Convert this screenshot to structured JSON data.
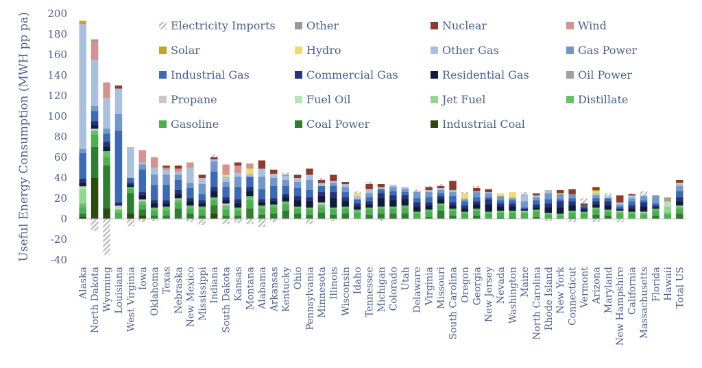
{
  "chart_data": {
    "type": "bar",
    "stacked": true,
    "ylabel": "Useful Energy Consumption (MWH pp pa)",
    "ylim": [
      -40,
      200
    ],
    "yticks": [
      -40,
      -20,
      0,
      20,
      40,
      60,
      80,
      100,
      120,
      140,
      160,
      180,
      200
    ],
    "grid": false,
    "legend_position": "top-right",
    "categories": [
      "Alaska",
      "North Dakota",
      "Wyoming",
      "Louisiana",
      "West Virginia",
      "Iowa",
      "Oklahoma",
      "Texas",
      "Nebraska",
      "New Mexico",
      "Mississippi",
      "Indiana",
      "South Dakota",
      "Kansas",
      "Montana",
      "Alabama",
      "Arkansas",
      "Kentucky",
      "Ohio",
      "Pennsylvania",
      "Minnesota",
      "Illinois",
      "Wisconsin",
      "Idaho",
      "Tennessee",
      "Michigan",
      "Colorado",
      "Utah",
      "Delaware",
      "Virginia",
      "Missouri",
      "South Carolina",
      "Oregon",
      "Georgia",
      "New Jersey",
      "Nevada",
      "Washington",
      "Maine",
      "North Carolina",
      "Rhode Island",
      "New York",
      "Connecticut",
      "Vermont",
      "Arizona",
      "Maryland",
      "New Hampshire",
      "California",
      "Massachusetts",
      "Florida",
      "Hawaii",
      "Total US"
    ],
    "series": [
      {
        "name": "Industrial Coal",
        "color": "#2a4a10",
        "values": [
          2,
          40,
          10,
          0,
          5,
          3,
          0,
          0,
          0,
          0,
          0,
          5,
          0,
          0,
          0,
          0,
          0,
          0,
          0,
          0,
          0,
          0,
          0,
          0,
          0,
          0,
          0,
          0,
          0,
          0,
          0,
          0,
          0,
          0,
          0,
          0,
          0,
          0,
          0,
          0,
          0,
          0,
          0,
          0,
          0,
          0,
          0,
          0,
          0,
          0,
          1
        ]
      },
      {
        "name": "Coal Power",
        "color": "#2e7d32",
        "values": [
          3,
          30,
          42,
          0,
          20,
          6,
          3,
          3,
          10,
          5,
          3,
          8,
          3,
          3,
          10,
          4,
          5,
          8,
          5,
          4,
          6,
          4,
          5,
          0,
          4,
          5,
          5,
          5,
          0,
          2,
          8,
          3,
          0,
          3,
          0,
          1,
          1,
          0,
          2,
          0,
          0,
          1,
          0,
          4,
          3,
          0,
          0,
          0,
          3,
          0,
          4
        ]
      },
      {
        "name": "Gasoline",
        "color": "#4caf50",
        "values": [
          6,
          12,
          8,
          6,
          4,
          5,
          5,
          5,
          6,
          5,
          6,
          5,
          6,
          5,
          8,
          6,
          6,
          6,
          5,
          5,
          5,
          5,
          5,
          6,
          5,
          5,
          5,
          6,
          5,
          5,
          5,
          5,
          5,
          5,
          5,
          5,
          5,
          5,
          5,
          4,
          3,
          5,
          5,
          5,
          4,
          5,
          5,
          4,
          5,
          4,
          5
        ]
      },
      {
        "name": "Distillate",
        "color": "#66c266",
        "values": [
          4,
          4,
          6,
          3,
          2,
          3,
          3,
          4,
          3,
          3,
          3,
          3,
          4,
          3,
          4,
          3,
          3,
          3,
          2,
          2,
          3,
          2,
          2,
          3,
          2,
          2,
          2,
          2,
          2,
          2,
          2,
          2,
          2,
          2,
          2,
          2,
          2,
          2,
          2,
          2,
          2,
          2,
          2,
          2,
          2,
          2,
          2,
          2,
          2,
          2,
          2
        ]
      },
      {
        "name": "Jet Fuel",
        "color": "#90d890",
        "values": [
          14,
          0,
          0,
          0,
          0,
          0,
          0,
          0,
          0,
          0,
          0,
          0,
          0,
          0,
          0,
          0,
          0,
          0,
          0,
          0,
          0,
          0,
          0,
          0,
          0,
          0,
          0,
          0,
          0,
          0,
          0,
          0,
          0,
          0,
          0,
          0,
          0,
          0,
          0,
          0,
          0,
          0,
          0,
          0,
          0,
          0,
          0,
          0,
          0,
          6,
          1
        ]
      },
      {
        "name": "Fuel Oil",
        "color": "#b7e4b2",
        "values": [
          2,
          0,
          0,
          2,
          0,
          0,
          0,
          0,
          0,
          0,
          0,
          0,
          0,
          0,
          0,
          0,
          0,
          0,
          0,
          0,
          0,
          0,
          0,
          0,
          0,
          0,
          0,
          0,
          0,
          0,
          0,
          0,
          0,
          0,
          0,
          0,
          0,
          0,
          0,
          0,
          0,
          0,
          0,
          0,
          0,
          0,
          0,
          0,
          0,
          5,
          0
        ]
      },
      {
        "name": "Propane",
        "color": "#c7c7c7",
        "values": [
          0,
          2,
          0,
          2,
          0,
          2,
          0,
          0,
          1,
          0,
          0,
          0,
          2,
          0,
          0,
          0,
          0,
          0,
          0,
          0,
          2,
          0,
          0,
          0,
          0,
          0,
          0,
          0,
          0,
          0,
          0,
          0,
          0,
          0,
          0,
          0,
          0,
          1,
          0,
          0,
          0,
          0,
          0,
          0,
          0,
          1,
          0,
          1,
          0,
          0,
          0
        ]
      },
      {
        "name": "Oil Power",
        "color": "#a0a0a0",
        "values": [
          1,
          0,
          0,
          0,
          0,
          0,
          0,
          0,
          0,
          0,
          0,
          0,
          0,
          0,
          0,
          0,
          0,
          0,
          0,
          0,
          0,
          0,
          0,
          0,
          0,
          0,
          0,
          0,
          0,
          0,
          0,
          0,
          0,
          0,
          0,
          0,
          0,
          0,
          0,
          0,
          0,
          0,
          0,
          0,
          0,
          0,
          0,
          0,
          0,
          3,
          0
        ]
      },
      {
        "name": "Residential Gas",
        "color": "#101c3c",
        "values": [
          3,
          3,
          4,
          1,
          2,
          4,
          4,
          3,
          4,
          4,
          3,
          6,
          3,
          4,
          5,
          3,
          3,
          4,
          6,
          6,
          6,
          9,
          5,
          3,
          3,
          8,
          6,
          6,
          5,
          4,
          4,
          3,
          3,
          4,
          7,
          4,
          4,
          1,
          2,
          5,
          6,
          5,
          2,
          3,
          4,
          1,
          3,
          5,
          1,
          0,
          4
        ]
      },
      {
        "name": "Commercial Gas",
        "color": "#263377",
        "values": [
          4,
          4,
          5,
          2,
          2,
          3,
          3,
          3,
          4,
          3,
          3,
          4,
          3,
          4,
          4,
          3,
          3,
          3,
          4,
          4,
          4,
          6,
          4,
          3,
          3,
          5,
          5,
          4,
          4,
          3,
          3,
          3,
          3,
          3,
          5,
          3,
          3,
          1,
          3,
          4,
          6,
          4,
          2,
          3,
          4,
          1,
          3,
          4,
          2,
          0,
          4
        ]
      },
      {
        "name": "Industrial Gas",
        "color": "#3d6ab5",
        "values": [
          25,
          10,
          8,
          70,
          5,
          22,
          15,
          15,
          10,
          10,
          6,
          15,
          10,
          12,
          10,
          10,
          12,
          8,
          8,
          7,
          6,
          6,
          5,
          4,
          4,
          4,
          4,
          3,
          4,
          5,
          3,
          6,
          4,
          4,
          2,
          3,
          3,
          1,
          4,
          4,
          2,
          3,
          2,
          3,
          3,
          2,
          4,
          2,
          2,
          0,
          6
        ]
      },
      {
        "name": "Gas Power",
        "color": "#7397c8",
        "values": [
          4,
          5,
          5,
          16,
          0,
          5,
          10,
          10,
          5,
          5,
          10,
          10,
          5,
          10,
          0,
          12,
          8,
          6,
          6,
          10,
          0,
          3,
          5,
          0,
          4,
          0,
          4,
          3,
          6,
          5,
          3,
          4,
          2,
          5,
          4,
          4,
          2,
          6,
          3,
          6,
          5,
          4,
          0,
          3,
          0,
          2,
          3,
          4,
          8,
          0,
          5
        ]
      },
      {
        "name": "Other Gas",
        "color": "#a9c1de",
        "values": [
          122,
          45,
          30,
          25,
          30,
          2,
          7,
          5,
          3,
          15,
          6,
          2,
          5,
          4,
          3,
          8,
          4,
          4,
          4,
          5,
          3,
          2,
          3,
          3,
          3,
          2,
          2,
          2,
          1,
          2,
          2,
          2,
          1,
          1,
          1,
          0,
          1,
          7,
          2,
          3,
          0,
          0,
          0,
          2,
          2,
          2,
          3,
          1,
          0,
          0,
          2
        ]
      },
      {
        "name": "Hydro",
        "color": "#f5d76e",
        "values": [
          0,
          0,
          0,
          0,
          0,
          0,
          0,
          0,
          0,
          0,
          0,
          0,
          2,
          0,
          5,
          0,
          0,
          0,
          0,
          0,
          0,
          0,
          0,
          3,
          1,
          0,
          0,
          0,
          0,
          0,
          0,
          0,
          5,
          0,
          0,
          3,
          5,
          0,
          0,
          0,
          1,
          0,
          0,
          2,
          0,
          0,
          0,
          0,
          0,
          0,
          1
        ]
      },
      {
        "name": "Solar",
        "color": "#c9a227",
        "values": [
          3,
          0,
          0,
          0,
          0,
          0,
          0,
          0,
          0,
          0,
          0,
          0,
          0,
          0,
          0,
          0,
          0,
          0,
          0,
          0,
          0,
          0,
          0,
          0,
          0,
          0,
          0,
          0,
          0,
          0,
          0,
          0,
          0,
          0,
          0,
          0,
          0,
          0,
          0,
          0,
          0,
          0,
          0,
          1,
          0,
          0,
          0,
          0,
          0,
          1,
          0
        ]
      },
      {
        "name": "Wind",
        "color": "#d6928e",
        "values": [
          0,
          18,
          15,
          0,
          0,
          12,
          10,
          2,
          3,
          5,
          0,
          0,
          10,
          7,
          5,
          0,
          0,
          0,
          0,
          0,
          0,
          0,
          0,
          0,
          0,
          0,
          0,
          0,
          0,
          0,
          0,
          0,
          0,
          0,
          0,
          0,
          0,
          0,
          0,
          0,
          0,
          0,
          0,
          0,
          0,
          0,
          0,
          0,
          0,
          0,
          0
        ]
      },
      {
        "name": "Nuclear",
        "color": "#8e3b2b",
        "values": [
          0,
          0,
          0,
          3,
          0,
          0,
          0,
          2,
          3,
          0,
          3,
          2,
          0,
          3,
          0,
          8,
          4,
          0,
          3,
          6,
          3,
          6,
          2,
          0,
          5,
          3,
          0,
          0,
          0,
          3,
          2,
          9,
          0,
          3,
          3,
          0,
          0,
          0,
          2,
          0,
          3,
          5,
          2,
          3,
          0,
          7,
          1,
          0,
          0,
          0,
          3
        ]
      },
      {
        "name": "Other",
        "color": "#9a9a9a",
        "values": [
          0,
          2,
          0,
          0,
          0,
          0,
          0,
          0,
          0,
          0,
          0,
          0,
          0,
          0,
          0,
          0,
          0,
          1,
          0,
          0,
          0,
          0,
          0,
          0,
          0,
          0,
          0,
          0,
          0,
          0,
          0,
          0,
          0,
          0,
          0,
          0,
          0,
          0,
          0,
          0,
          0,
          0,
          0,
          0,
          0,
          0,
          0,
          0,
          0,
          0,
          0
        ]
      },
      {
        "name": "Electricity Imports",
        "color": "#c0c0c0",
        "hatched": true,
        "values": [
          0,
          -12,
          -35,
          0,
          -7,
          -3,
          -2,
          0,
          0,
          -3,
          -6,
          3,
          -5,
          -4,
          -5,
          -8,
          -3,
          2,
          0,
          -5,
          2,
          -2,
          0,
          2,
          2,
          -2,
          0,
          0,
          2,
          1,
          2,
          0,
          1,
          2,
          0,
          0,
          0,
          2,
          0,
          -2,
          0,
          -3,
          5,
          -3,
          3,
          -3,
          1,
          4,
          0,
          0,
          0
        ]
      }
    ]
  }
}
